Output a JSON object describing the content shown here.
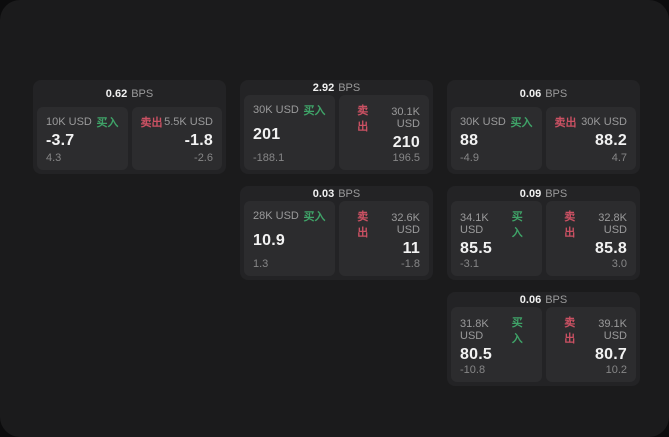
{
  "colors": {
    "outer_bg": "#0c0c0d",
    "surface": "#1b1b1c",
    "card_bg": "#232325",
    "panel_bg": "#2c2c2e",
    "bright": "#f2f2f2",
    "muted": "#9a9a9b",
    "dim": "#868687",
    "buy_green": "#3fa368",
    "sell_red": "#cb5163"
  },
  "labels": {
    "bps_unit": "BPS",
    "buy": "买入",
    "sell": "卖出"
  },
  "cards": [
    {
      "row": 1,
      "col": 1,
      "bps": "0.62",
      "buy": {
        "amount": "10K USD",
        "value": "-3.7",
        "sub": "4.3"
      },
      "sell": {
        "amount": "5.5K USD",
        "value": "-1.8",
        "sub": "-2.6"
      }
    },
    {
      "row": 1,
      "col": 2,
      "bps": "2.92",
      "buy": {
        "amount": "30K USD",
        "value": "201",
        "sub": "-188.1"
      },
      "sell": {
        "amount": "30.1K USD",
        "value": "210",
        "sub": "196.5"
      }
    },
    {
      "row": 1,
      "col": 3,
      "bps": "0.06",
      "buy": {
        "amount": "30K USD",
        "value": "88",
        "sub": "-4.9"
      },
      "sell": {
        "amount": "30K USD",
        "value": "88.2",
        "sub": "4.7"
      }
    },
    {
      "row": 2,
      "col": 2,
      "bps": "0.03",
      "buy": {
        "amount": "28K USD",
        "value": "10.9",
        "sub": "1.3"
      },
      "sell": {
        "amount": "32.6K USD",
        "value": "11",
        "sub": "-1.8"
      }
    },
    {
      "row": 2,
      "col": 3,
      "bps": "0.09",
      "buy": {
        "amount": "34.1K USD",
        "value": "85.5",
        "sub": "-3.1"
      },
      "sell": {
        "amount": "32.8K USD",
        "value": "85.8",
        "sub": "3.0"
      }
    },
    {
      "row": 3,
      "col": 3,
      "bps": "0.06",
      "buy": {
        "amount": "31.8K USD",
        "value": "80.5",
        "sub": "-10.8"
      },
      "sell": {
        "amount": "39.1K USD",
        "value": "80.7",
        "sub": "10.2"
      }
    }
  ]
}
